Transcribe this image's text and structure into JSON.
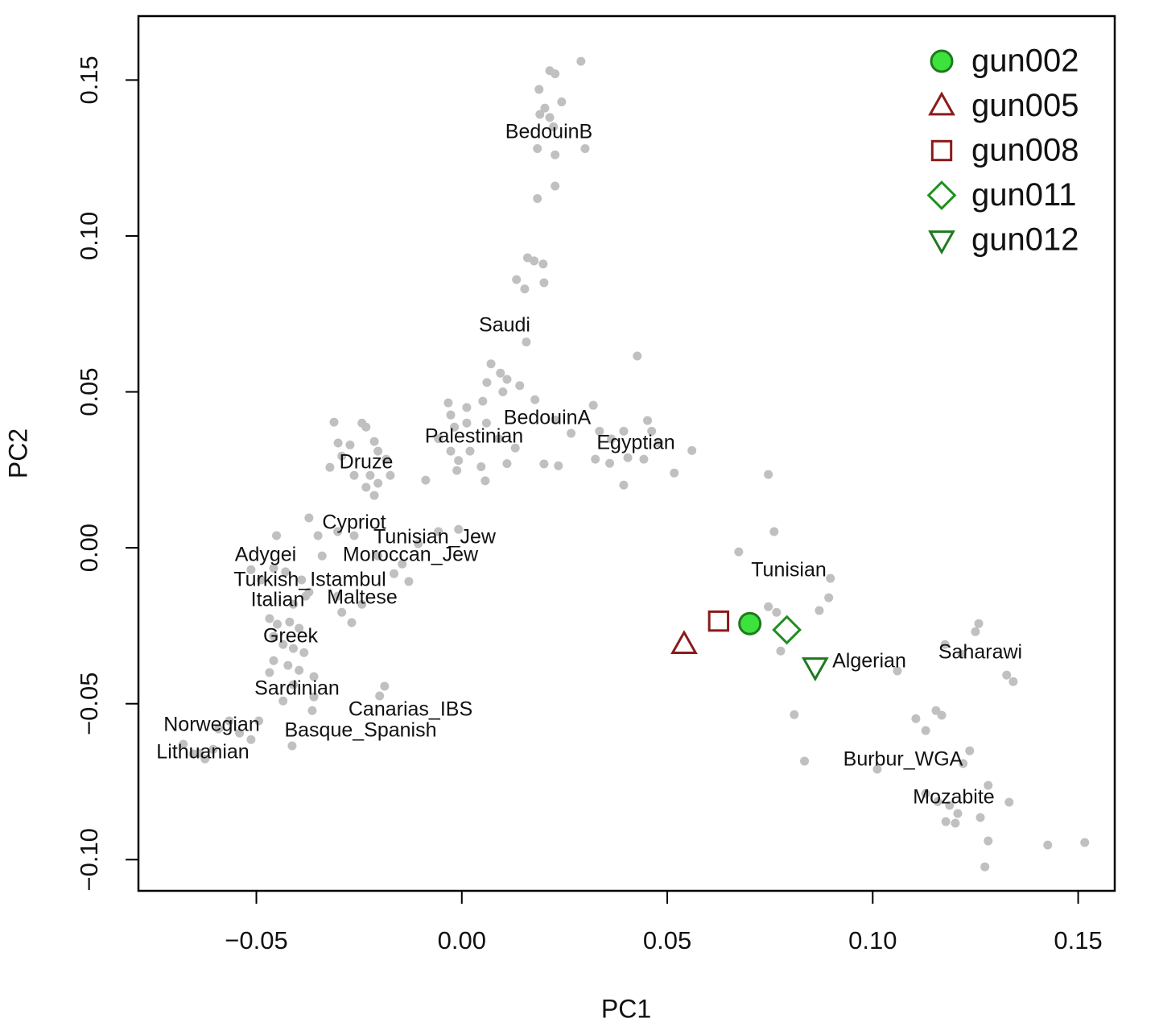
{
  "chart_data": {
    "type": "scatter",
    "xlabel": "PC1",
    "ylabel": "PC2",
    "xlim": [
      -0.0787,
      0.1589
    ],
    "ylim": [
      -0.11,
      0.1705
    ],
    "xticks": [
      {
        "value": -0.05,
        "label": "−0.05"
      },
      {
        "value": 0,
        "label": "0.00"
      },
      {
        "value": 0.05,
        "label": "0.05"
      },
      {
        "value": 0.1,
        "label": "0.10"
      },
      {
        "value": 0.15,
        "label": "0.15"
      }
    ],
    "yticks": [
      {
        "value": -0.1,
        "label": "−0.10"
      },
      {
        "value": -0.05,
        "label": "−0.05"
      },
      {
        "value": 0,
        "label": "0.00"
      },
      {
        "value": 0.05,
        "label": "0.05"
      },
      {
        "value": 0.1,
        "label": "0.10"
      },
      {
        "value": 0.15,
        "label": "0.15"
      }
    ],
    "grid": false,
    "legend": "upper right",
    "annotations": [
      "BedouinB",
      "Saudi",
      "BedouinA",
      "Palestinian",
      "Egyptian",
      "Druze",
      "Cypriot",
      "Tunisian_Jew",
      "Moroccan_Jew",
      "Adygei",
      "Turkish_Istambul",
      "Italian",
      "Maltese",
      "Greek",
      "Sardinian",
      "Canarias_IBS",
      "Norwegian",
      "Basque_Spanish",
      "Lithuanian",
      "Tunisian",
      "Algerian",
      "Saharawi",
      "Burbur_WGA",
      "Mozabite"
    ],
    "series": [
      {
        "color": "#c0c0c0",
        "marker": "dot",
        "x": [
          0.029,
          0.0214,
          0.0227,
          0.0188,
          0.0243,
          0.0202,
          0.019,
          0.0214,
          0.0223,
          0.0184,
          0.0227,
          0.03,
          0.0227,
          0.0184,
          0.016,
          0.0176,
          0.0198,
          0.0133,
          0.0153,
          0.02,
          0.0157,
          0.0071,
          0.0094,
          0.0061,
          0.011,
          0.01,
          0.0141,
          -0.0033,
          0.0012,
          0.0051,
          0.0178,
          0.032,
          0.0427,
          -0.0027,
          -0.0018,
          -0.0057,
          0.0012,
          0.006,
          0.009,
          0.013,
          -0.0027,
          -0.0008,
          0.002,
          0.0047,
          0.011,
          0.0057,
          -0.0012,
          -0.0088,
          0.0227,
          0.0266,
          0.02,
          0.0235,
          0.0335,
          0.0364,
          0.0394,
          0.0452,
          0.0462,
          0.0325,
          0.036,
          0.0404,
          0.0443,
          0.0394,
          0.0517,
          0.056,
          0.048,
          -0.0311,
          -0.0301,
          -0.0272,
          -0.0243,
          -0.0233,
          -0.0213,
          -0.0204,
          -0.0184,
          -0.0223,
          -0.0204,
          -0.0233,
          -0.0262,
          -0.0174,
          -0.0321,
          -0.0292,
          -0.0213,
          -0.0372,
          -0.035,
          -0.034,
          -0.0302,
          -0.0262,
          -0.0204,
          -0.0145,
          -0.0106,
          -0.0057,
          -0.0008,
          -0.0129,
          -0.0165,
          -0.0451,
          -0.0513,
          -0.0488,
          -0.0458,
          -0.0429,
          -0.039,
          -0.038,
          -0.041,
          -0.0372,
          -0.0292,
          -0.0268,
          -0.0243,
          -0.0302,
          -0.0468,
          -0.0449,
          -0.0419,
          -0.0396,
          -0.0458,
          -0.0435,
          -0.041,
          -0.0384,
          -0.0458,
          -0.0423,
          -0.0396,
          -0.036,
          -0.0468,
          -0.041,
          -0.0435,
          -0.036,
          -0.0364,
          -0.0413,
          -0.0678,
          -0.0654,
          -0.0625,
          -0.0605,
          -0.0592,
          -0.0566,
          -0.0541,
          -0.0513,
          -0.0494,
          -0.0639,
          -0.0188,
          -0.02,
          0.0746,
          0.076,
          0.0674,
          0.0897,
          0.0893,
          0.087,
          0.0746,
          0.0766,
          0.0776,
          0.0809,
          0.0834,
          0.1011,
          0.106,
          0.1258,
          0.125,
          0.1176,
          0.1217,
          0.1326,
          0.1342,
          0.1105,
          0.1154,
          0.1168,
          0.1129,
          0.1236,
          0.122,
          0.1281,
          0.1129,
          0.1158,
          0.1187,
          0.1207,
          0.1178,
          0.1201,
          0.1262,
          0.1332,
          0.1281,
          0.1273,
          0.1426,
          0.1516
        ],
        "y": [
          0.156,
          0.153,
          0.152,
          0.147,
          0.143,
          0.141,
          0.139,
          0.138,
          0.135,
          0.128,
          0.126,
          0.128,
          0.116,
          0.112,
          0.093,
          0.092,
          0.091,
          0.086,
          0.083,
          0.085,
          0.066,
          0.059,
          0.056,
          0.053,
          0.054,
          0.05,
          0.052,
          0.0465,
          0.045,
          0.047,
          0.0475,
          0.0457,
          0.0615,
          0.0426,
          0.0387,
          0.035,
          0.04,
          0.04,
          0.035,
          0.032,
          0.031,
          0.028,
          0.031,
          0.026,
          0.027,
          0.0215,
          0.0248,
          0.0217,
          0.041,
          0.0367,
          0.0269,
          0.0263,
          0.0374,
          0.0349,
          0.0374,
          0.0408,
          0.0374,
          0.0284,
          0.0271,
          0.0289,
          0.0284,
          0.0201,
          0.024,
          0.0312,
          0.0336,
          0.0403,
          0.0336,
          0.033,
          0.04,
          0.0387,
          0.0341,
          0.031,
          0.0284,
          0.0232,
          0.0207,
          0.0194,
          0.0232,
          0.0232,
          0.0258,
          0.0294,
          0.0168,
          0.0096,
          0.0039,
          -0.0026,
          0.0052,
          0.0039,
          -0.0026,
          -0.0052,
          0.0013,
          0.0052,
          0.0059,
          -0.0108,
          -0.0083,
          0.0039,
          -0.007,
          -0.0103,
          -0.0065,
          -0.0077,
          -0.0103,
          -0.0155,
          -0.0181,
          -0.0142,
          -0.0207,
          -0.024,
          -0.0181,
          -0.0155,
          -0.0227,
          -0.0245,
          -0.0238,
          -0.0258,
          -0.0284,
          -0.031,
          -0.0323,
          -0.0336,
          -0.0362,
          -0.0377,
          -0.0393,
          -0.0413,
          -0.04,
          -0.0439,
          -0.0491,
          -0.0478,
          -0.0522,
          -0.0635,
          -0.063,
          -0.0661,
          -0.0677,
          -0.0646,
          -0.0581,
          -0.0555,
          -0.0594,
          -0.0615,
          -0.0555,
          -0.0659,
          -0.0444,
          -0.0475,
          0.0235,
          0.0052,
          -0.0013,
          -0.0098,
          -0.016,
          -0.0201,
          -0.0189,
          -0.0207,
          -0.0331,
          -0.0535,
          -0.0684,
          -0.071,
          -0.0395,
          -0.0243,
          -0.0269,
          -0.031,
          -0.0341,
          -0.0408,
          -0.0429,
          -0.0548,
          -0.0522,
          -0.0537,
          -0.0586,
          -0.0651,
          -0.0692,
          -0.0762,
          -0.0788,
          -0.0814,
          -0.0826,
          -0.0852,
          -0.0878,
          -0.0883,
          -0.0865,
          -0.0816,
          -0.094,
          -0.1023,
          -0.0953,
          -0.0945
        ]
      },
      {
        "name": "gun002",
        "marker": "circle",
        "color": "#3de23d",
        "edgecolor": "#1f7a1f",
        "x": [
          0.0701
        ],
        "y": [
          -0.0243
        ]
      },
      {
        "name": "gun005",
        "marker": "triangle-up",
        "color": "#ffffff",
        "edgecolor": "#8b1a1a",
        "x": [
          0.0541
        ],
        "y": [
          -0.031
        ]
      },
      {
        "name": "gun008",
        "marker": "square",
        "color": "#ffffff",
        "edgecolor": "#8b1a1a",
        "x": [
          0.0625
        ],
        "y": [
          -0.0235
        ]
      },
      {
        "name": "gun011",
        "marker": "diamond",
        "color": "#ffffff",
        "edgecolor": "#1f8f1f",
        "x": [
          0.0791
        ],
        "y": [
          -0.0263
        ]
      },
      {
        "name": "gun012",
        "marker": "triangle-down",
        "color": "#ffffff",
        "edgecolor": "#1f7a1f",
        "x": [
          0.086
        ],
        "y": [
          -0.0382
        ]
      }
    ]
  }
}
